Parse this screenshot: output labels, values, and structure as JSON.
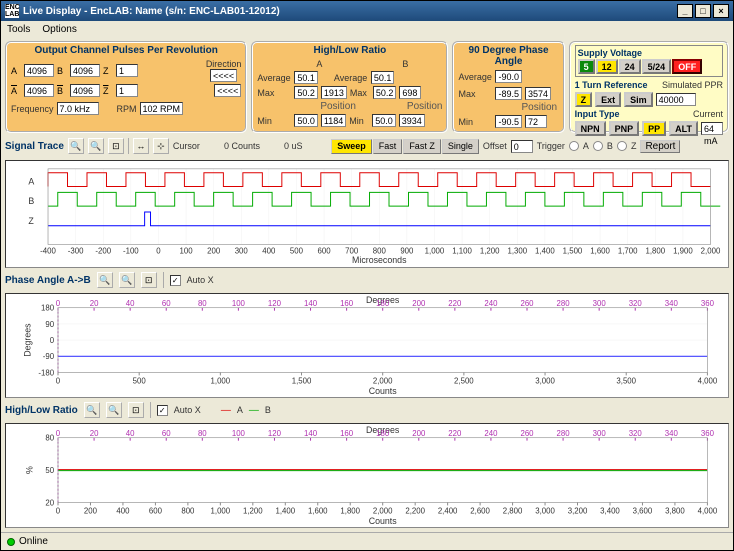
{
  "window": {
    "title": "Live Display - EncLAB: Name (s/n: ENC-LAB01-12012)"
  },
  "menu": {
    "tools": "Tools",
    "options": "Options"
  },
  "p1": {
    "title": "Output Channel Pulses Per Revolution",
    "A": "A",
    "Av": "4096",
    "B": "B",
    "Bv": "4096",
    "Z": "Z",
    "Zv": "1",
    "Ab": "A",
    "Abv": "4096",
    "Bb": "B",
    "Bbv": "4096",
    "Zb": "Z",
    "Zbv": "1",
    "dir": "Direction",
    "dir1": "<<<<",
    "dir2": "<<<<",
    "freq": "Frequency",
    "freqv": "7.0 kHz",
    "rpm": "RPM",
    "rpmv": "102 RPM"
  },
  "p2": {
    "title": "High/Low Ratio",
    "colA": "A",
    "colB": "B",
    "avg": "Average",
    "avgA": "50.1",
    "avgB": "50.1",
    "max": "Max",
    "maxA": "50.2",
    "maxAp": "1913",
    "maxB": "50.2",
    "maxBp": "698",
    "pos": "Position",
    "min": "Min",
    "minA": "50.0",
    "minAp": "1184",
    "minB": "50.0",
    "minBp": "3934"
  },
  "p3": {
    "title": "90 Degree Phase Angle",
    "avg": "Average",
    "avgV": "-90.0",
    "max": "Max",
    "maxV": "-89.5",
    "maxP": "3574",
    "pos": "Position",
    "min": "Min",
    "minV": "-90.5",
    "minP": "72"
  },
  "p4": {
    "sv": "Supply Voltage",
    "b5": "5",
    "b12": "12",
    "b24": "24",
    "b524": "5/24",
    "off": "OFF",
    "tr": "1 Turn Reference",
    "sp": "Simulated PPR",
    "bZ": "Z",
    "bExt": "Ext",
    "bSim": "Sim",
    "ppr": "40000",
    "it": "Input Type",
    "cur": "Current",
    "bNPN": "NPN",
    "bPNP": "PNP",
    "bPP": "PP",
    "bALT": "ALT",
    "curV": "64 mA"
  },
  "trace": {
    "title": "Signal Trace",
    "cursor": "Cursor",
    "counts": "0 Counts",
    "us": "0 uS",
    "sweep": "Sweep",
    "fast": "Fast",
    "fastz": "Fast Z",
    "single": "Single",
    "offset": "Offset",
    "offsetv": "0",
    "trigger": "Trigger",
    "rA": "A",
    "rB": "B",
    "rZ": "Z",
    "report": "Report",
    "xlabel": "Microseconds",
    "xticks": [
      "-400",
      "-300",
      "-200",
      "-100",
      "0",
      "100",
      "200",
      "300",
      "400",
      "500",
      "600",
      "700",
      "800",
      "900",
      "1,000",
      "1,100",
      "1,200",
      "1,300",
      "1,400",
      "1,500",
      "1,600",
      "1,700",
      "1,800",
      "1,900",
      "2,000"
    ],
    "ylabA": "A",
    "ylabB": "B",
    "ylabZ": "Z"
  },
  "phase": {
    "title": "Phase Angle A->B",
    "autox": "Auto X",
    "topLabel": "Degrees",
    "degTicks": [
      "0",
      "20",
      "40",
      "60",
      "80",
      "100",
      "120",
      "140",
      "160",
      "180",
      "200",
      "220",
      "240",
      "260",
      "280",
      "300",
      "320",
      "340",
      "360"
    ],
    "yticks": [
      "180",
      "90",
      "0",
      "-90",
      "-180"
    ],
    "ylabel": "Degrees",
    "xticks": [
      "0",
      "500",
      "1,000",
      "1,500",
      "2,000",
      "2,500",
      "3,000",
      "3,500",
      "4,000"
    ],
    "xlabel": "Counts"
  },
  "ratio": {
    "title": "High/Low Ratio",
    "autox": "Auto X",
    "legA": "A",
    "legB": "B",
    "topLabel": "Degrees",
    "degTicks": [
      "0",
      "20",
      "40",
      "60",
      "80",
      "100",
      "120",
      "140",
      "160",
      "180",
      "200",
      "220",
      "240",
      "260",
      "280",
      "300",
      "320",
      "340",
      "360"
    ],
    "yticks": [
      "80",
      "50",
      "20"
    ],
    "ylabel": "%",
    "xticks": [
      "0",
      "200",
      "400",
      "600",
      "800",
      "1,000",
      "1,200",
      "1,400",
      "1,600",
      "1,800",
      "2,000",
      "2,200",
      "2,400",
      "2,600",
      "2,800",
      "3,000",
      "3,200",
      "3,400",
      "3,600",
      "3,800",
      "4,000"
    ],
    "xlabel": "Counts"
  },
  "status": {
    "online": "Online"
  },
  "colors": {
    "sigA": "#d00000",
    "sigB": "#00a000",
    "sigZ": "#0000ff",
    "phase": "#4040ff",
    "ratioA": "#d00000",
    "ratioB": "#00a000",
    "deg": "#b030b0"
  }
}
